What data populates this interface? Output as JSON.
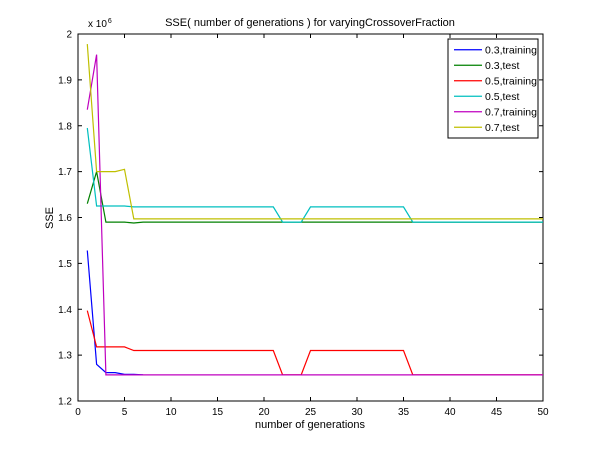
{
  "chart_data": {
    "type": "line",
    "title": "SSE( number of generations ) for varyingCrossoverFraction",
    "xlabel": "number of generations",
    "ylabel": "SSE",
    "y_multiplier_label": "x 10",
    "y_multiplier_exponent": "6",
    "xlim": [
      0,
      50
    ],
    "ylim": [
      1.2,
      2.0
    ],
    "y_scale": 1000000,
    "grid": false,
    "legend_position": "top-right",
    "x_ticks": [
      "0",
      "5",
      "10",
      "15",
      "20",
      "25",
      "30",
      "35",
      "40",
      "45",
      "50"
    ],
    "y_ticks": [
      "1.2",
      "1.3",
      "1.4",
      "1.5",
      "1.6",
      "1.7",
      "1.8",
      "1.9",
      "2"
    ],
    "series": [
      {
        "name": "0.3,training",
        "color": "#0000ff",
        "x": [
          1,
          2,
          3,
          4,
          5,
          6,
          7
        ],
        "y": [
          1.528,
          1.28,
          1.262,
          1.262,
          1.258,
          1.258,
          1.257
        ]
      },
      {
        "name": "0.3,test",
        "color": "#008000",
        "x": [
          1,
          2,
          3,
          4,
          5,
          6,
          7,
          50
        ],
        "y": [
          1.63,
          1.7,
          1.59,
          1.59,
          1.59,
          1.588,
          1.59,
          1.59
        ]
      },
      {
        "name": "0.5,training",
        "color": "#ff0000",
        "x": [
          1,
          2,
          3,
          4,
          5,
          6,
          21,
          22,
          24,
          25,
          35,
          36,
          50
        ],
        "y": [
          1.397,
          1.318,
          1.318,
          1.318,
          1.318,
          1.31,
          1.31,
          1.257,
          1.257,
          1.31,
          1.31,
          1.257,
          1.257
        ]
      },
      {
        "name": "0.5,test",
        "color": "#00bfbf",
        "x": [
          1,
          2,
          3,
          4,
          5,
          6,
          21,
          22,
          24,
          25,
          35,
          36,
          50
        ],
        "y": [
          1.795,
          1.625,
          1.625,
          1.625,
          1.625,
          1.623,
          1.623,
          1.59,
          1.59,
          1.623,
          1.623,
          1.59,
          1.59
        ]
      },
      {
        "name": "0.7,training",
        "color": "#bf00bf",
        "x": [
          1,
          2,
          3,
          4,
          5,
          6,
          50
        ],
        "y": [
          1.835,
          1.955,
          1.257,
          1.257,
          1.257,
          1.257,
          1.257
        ]
      },
      {
        "name": "0.7,test",
        "color": "#bfbf00",
        "x": [
          1,
          2,
          3,
          4,
          5,
          6,
          50
        ],
        "y": [
          1.978,
          1.7,
          1.7,
          1.7,
          1.705,
          1.597,
          1.597
        ]
      }
    ]
  }
}
